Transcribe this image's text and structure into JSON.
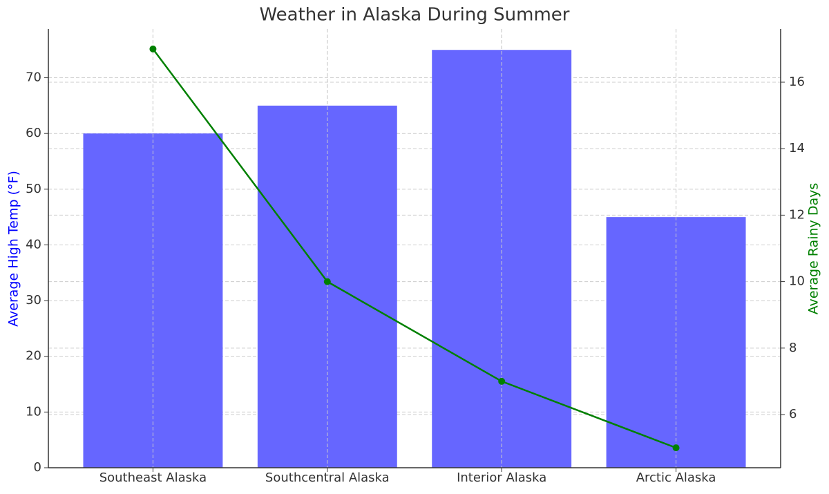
{
  "chart_data": {
    "type": "bar",
    "title": "Weather in Alaska During Summer",
    "categories": [
      "Southeast Alaska",
      "Southcentral Alaska",
      "Interior Alaska",
      "Arctic Alaska"
    ],
    "y_label": "Average High Temp (°F)",
    "y2_label": "Average Rainy Days",
    "series": [
      {
        "name": "Average High Temp (°F)",
        "type": "bar",
        "color": "#6666ff",
        "values": [
          60,
          65,
          75,
          45
        ]
      },
      {
        "name": "Average Rainy Days",
        "type": "line",
        "axis": "y2",
        "color": "#008000",
        "values": [
          17,
          10,
          7,
          5
        ]
      }
    ],
    "ylim": [
      0,
      78.75
    ],
    "yticks": [
      0,
      10,
      20,
      30,
      40,
      50,
      60,
      70
    ],
    "y_color": "#0000ff",
    "y2lim": [
      4.4,
      17.6
    ],
    "y2ticks": [
      6,
      8,
      10,
      12,
      14,
      16
    ],
    "y2_color": "#008000",
    "grid": true
  }
}
